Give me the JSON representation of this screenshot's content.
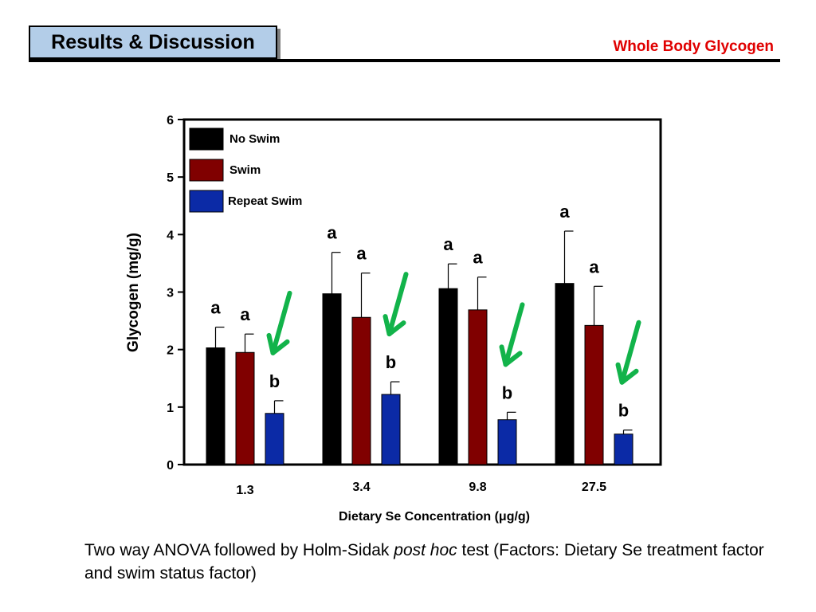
{
  "header": {
    "title": "Results & Discussion",
    "subtitle": "Whole Body Glycogen"
  },
  "caption": {
    "part1": "Two way ANOVA followed by Holm-Sidak ",
    "italic": "post hoc",
    "part2": " test (Factors: Dietary Se treatment factor and swim status factor)"
  },
  "colors": {
    "no_swim": "#000000",
    "swim": "#800000",
    "repeat_swim": "#0b2aa6",
    "arrow": "#12b34a",
    "header_box": "#b3cde8",
    "subtitle": "#e00000"
  },
  "chart_data": {
    "type": "bar",
    "categories": [
      "1.3",
      "3.4",
      "9.8",
      "27.5"
    ],
    "xlabel": "Dietary Se Concentration (μg/g)",
    "ylabel": "Glycogen (mg/g)",
    "ylim": [
      0,
      6
    ],
    "yticks": [
      0,
      1,
      2,
      3,
      4,
      5,
      6
    ],
    "legend_position": "top-left",
    "series": [
      {
        "name": "No Swim",
        "values": [
          2.03,
          2.97,
          3.06,
          3.15
        ],
        "errors": [
          0.36,
          0.72,
          0.43,
          0.91
        ],
        "letters": [
          "a",
          "a",
          "a",
          "a"
        ]
      },
      {
        "name": "Swim",
        "values": [
          1.95,
          2.56,
          2.69,
          2.42
        ],
        "errors": [
          0.32,
          0.77,
          0.57,
          0.68
        ],
        "letters": [
          "a",
          "a",
          "a",
          "a"
        ]
      },
      {
        "name": "Repeat Swim",
        "values": [
          0.89,
          1.22,
          0.78,
          0.53
        ],
        "errors": [
          0.22,
          0.22,
          0.13,
          0.07
        ],
        "letters": [
          "b",
          "b",
          "b",
          "b"
        ]
      }
    ],
    "annotations": "green arrows pointing to each Repeat Swim bar"
  }
}
